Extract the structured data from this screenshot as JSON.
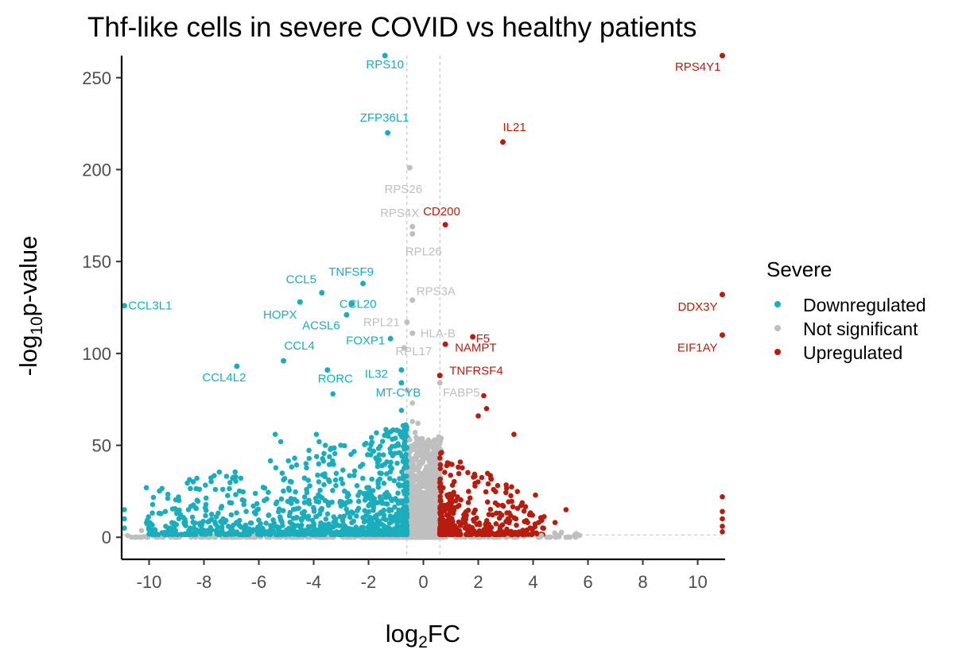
{
  "chart_data": {
    "type": "scatter",
    "title": "Thf-like cells in severe COVID vs healthy patients",
    "xlabel": {
      "base": "log",
      "sub": "2",
      "rest": "FC"
    },
    "ylabel": {
      "prefix": "-log",
      "sub": "10",
      "rest": "p-value"
    },
    "xlim": [
      -11,
      11
    ],
    "ylim": [
      -12,
      262
    ],
    "xticks": [
      -10,
      -8,
      -6,
      -4,
      -2,
      0,
      2,
      4,
      6,
      8,
      10
    ],
    "yticks": [
      0,
      50,
      100,
      150,
      200,
      250
    ],
    "thresholds": {
      "x": [
        -0.6,
        0.6
      ],
      "y": 1.3
    },
    "legend": {
      "title": "Severe",
      "position": "right",
      "entries": [
        {
          "label": "Downregulated",
          "color": "#1aadbb"
        },
        {
          "label": "Not significant",
          "color": "#bfbfbf"
        },
        {
          "label": "Upregulated",
          "color": "#b81c0e"
        }
      ]
    },
    "colors": {
      "down": "#1aadbb",
      "ns": "#bfbfbf",
      "up": "#b81c0e"
    },
    "labeled_genes": [
      {
        "gene": "RPS10",
        "x": -1.4,
        "y": 262,
        "group": "down"
      },
      {
        "gene": "RPS4Y1",
        "x": 10.9,
        "y": 262,
        "group": "up"
      },
      {
        "gene": "ZFP36L1",
        "x": -1.3,
        "y": 220,
        "group": "down"
      },
      {
        "gene": "IL21",
        "x": 2.9,
        "y": 215,
        "group": "up"
      },
      {
        "gene": "RPS26",
        "x": -0.5,
        "y": 201,
        "group": "ns"
      },
      {
        "gene": "RPS4X",
        "x": -0.4,
        "y": 169,
        "group": "ns"
      },
      {
        "gene": "CD200",
        "x": 0.8,
        "y": 170,
        "group": "up"
      },
      {
        "gene": "RPL26",
        "x": -0.4,
        "y": 165,
        "group": "ns"
      },
      {
        "gene": "TNFSF9",
        "x": -2.2,
        "y": 138,
        "group": "down"
      },
      {
        "gene": "CCL5",
        "x": -3.7,
        "y": 133,
        "group": "down"
      },
      {
        "gene": "RPS3A",
        "x": -0.4,
        "y": 129,
        "group": "ns"
      },
      {
        "gene": "DDX3Y",
        "x": 10.9,
        "y": 132,
        "group": "up"
      },
      {
        "gene": "CCL20",
        "x": -2.6,
        "y": 127,
        "group": "down"
      },
      {
        "gene": "CCL3L1",
        "x": -10.9,
        "y": 126,
        "group": "down"
      },
      {
        "gene": "HOPX",
        "x": -4.5,
        "y": 128,
        "group": "down"
      },
      {
        "gene": "ACSL6",
        "x": -2.8,
        "y": 121,
        "group": "down"
      },
      {
        "gene": "RPL21",
        "x": -0.6,
        "y": 117,
        "group": "ns"
      },
      {
        "gene": "HLA-B",
        "x": -0.4,
        "y": 111,
        "group": "ns"
      },
      {
        "gene": "F5",
        "x": 1.8,
        "y": 109,
        "group": "up"
      },
      {
        "gene": "EIF1AY",
        "x": 10.9,
        "y": 110,
        "group": "up"
      },
      {
        "gene": "CCL4",
        "x": -5.1,
        "y": 96,
        "group": "down"
      },
      {
        "gene": "FOXP1",
        "x": -1.2,
        "y": 108,
        "group": "down"
      },
      {
        "gene": "RPL17",
        "x": -0.7,
        "y": 103,
        "group": "ns"
      },
      {
        "gene": "NAMPT",
        "x": 0.8,
        "y": 105,
        "group": "up"
      },
      {
        "gene": "CCL4L2",
        "x": -6.8,
        "y": 93,
        "group": "down"
      },
      {
        "gene": "IL32",
        "x": -0.8,
        "y": 91,
        "group": "down"
      },
      {
        "gene": "TNFRSF4",
        "x": 0.6,
        "y": 88,
        "group": "up"
      },
      {
        "gene": "RORC",
        "x": -3.5,
        "y": 91,
        "group": "down"
      },
      {
        "gene": "MT-CYB",
        "x": -0.8,
        "y": 84,
        "group": "down"
      },
      {
        "gene": "FABP5",
        "x": 0.6,
        "y": 84,
        "group": "ns"
      }
    ]
  }
}
